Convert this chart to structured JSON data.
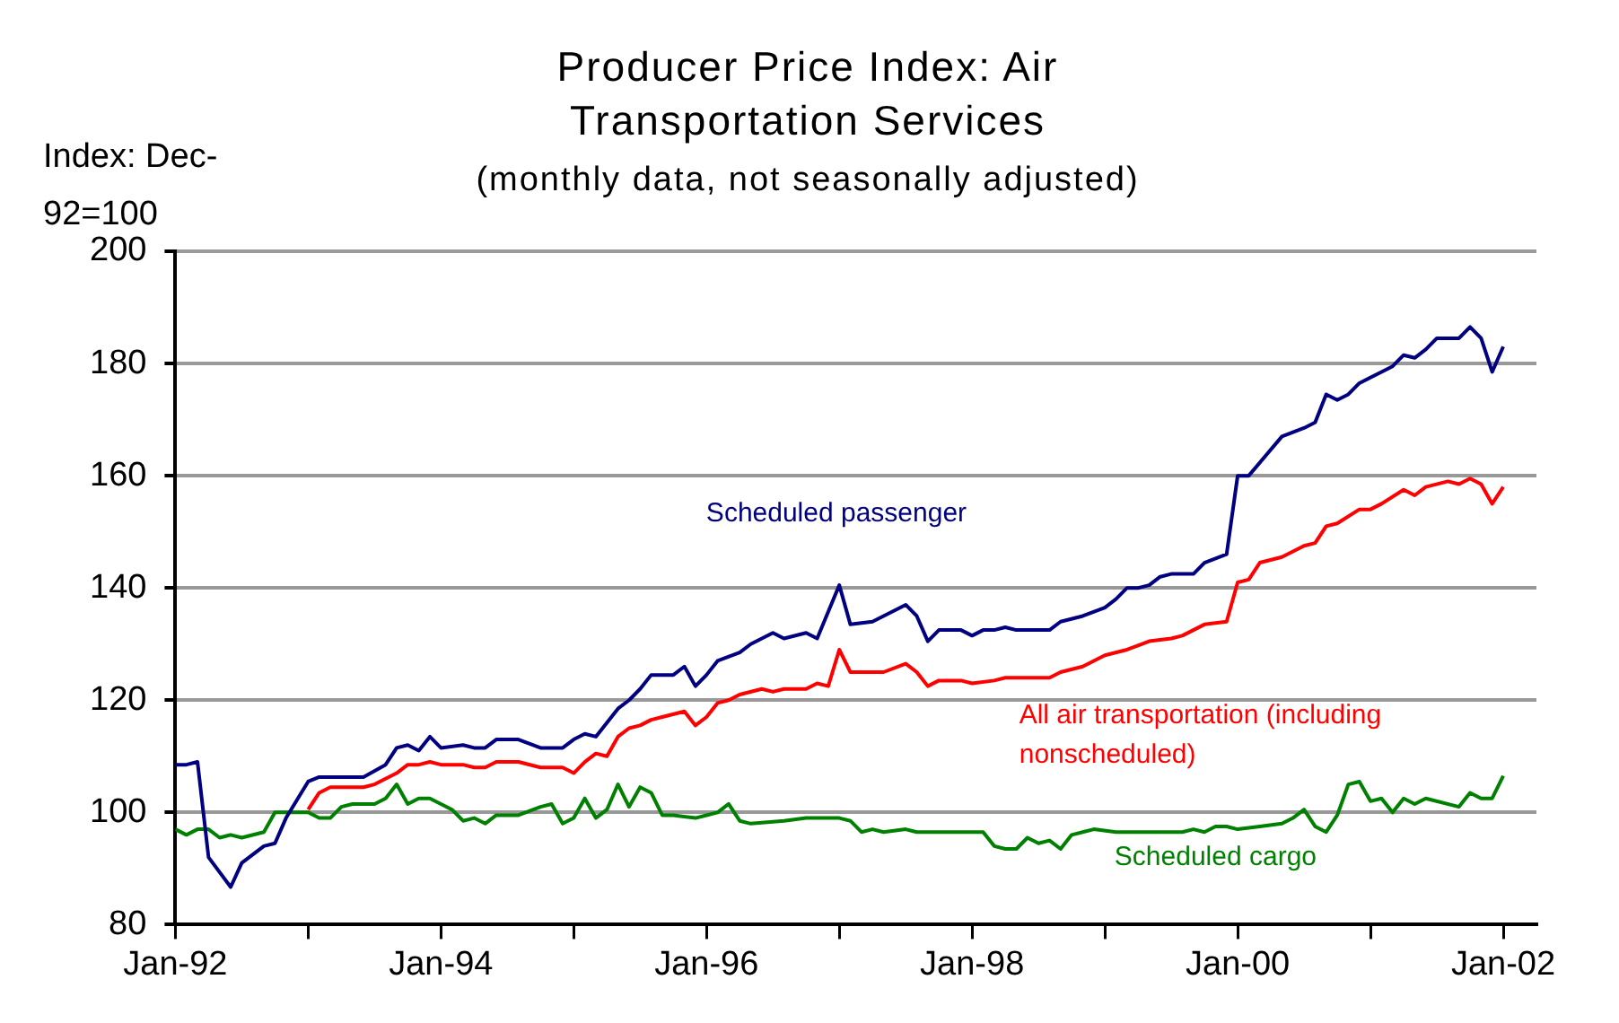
{
  "chart_data": {
    "type": "line",
    "title": "Producer Price Index: Air Transportation Services",
    "subtitle": "(monthly data, not seasonally adjusted)",
    "ylabel": "Index: Dec-92=100",
    "xlim": [
      "1992-01",
      "2002-04"
    ],
    "xticks": [
      {
        "value": "1992-01",
        "label": "Jan-92"
      },
      {
        "value": "1993-01",
        "label": null
      },
      {
        "value": "1994-01",
        "label": "Jan-94"
      },
      {
        "value": "1995-01",
        "label": null
      },
      {
        "value": "1996-01",
        "label": "Jan-96"
      },
      {
        "value": "1997-01",
        "label": null
      },
      {
        "value": "1998-01",
        "label": "Jan-98"
      },
      {
        "value": "1999-01",
        "label": null
      },
      {
        "value": "2000-01",
        "label": "Jan-00"
      },
      {
        "value": "2001-01",
        "label": null
      },
      {
        "value": "2002-01",
        "label": "Jan-02"
      }
    ],
    "ylim": [
      80,
      200
    ],
    "yticks": [
      80,
      100,
      120,
      140,
      160,
      180,
      200
    ],
    "grid": "y",
    "legend": false,
    "marker": "none",
    "line_style": "solid",
    "series": [
      {
        "name": "Scheduled passenger",
        "color": "#000080",
        "x": [
          "1992-01",
          "1992-02",
          "1992-03",
          "1992-04",
          "1992-06",
          "1992-07",
          "1992-09",
          "1992-10",
          "1992-11",
          "1993-01",
          "1993-02",
          "1993-06",
          "1993-08",
          "1993-09",
          "1993-10",
          "1993-11",
          "1993-12",
          "1994-01",
          "1994-03",
          "1994-04",
          "1994-05",
          "1994-06",
          "1994-08",
          "1994-10",
          "1994-12",
          "1995-01",
          "1995-02",
          "1995-03",
          "1995-05",
          "1995-06",
          "1995-07",
          "1995-08",
          "1995-10",
          "1995-11",
          "1995-12",
          "1996-01",
          "1996-02",
          "1996-04",
          "1996-05",
          "1996-07",
          "1996-08",
          "1996-10",
          "1996-11",
          "1997-01",
          "1997-02",
          "1997-04",
          "1997-07",
          "1997-08",
          "1997-09",
          "1997-10",
          "1997-12",
          "1998-01",
          "1998-02",
          "1998-03",
          "1998-04",
          "1998-05",
          "1998-08",
          "1998-09",
          "1998-11",
          "1999-01",
          "1999-02",
          "1999-03",
          "1999-04",
          "1999-05",
          "1999-06",
          "1999-07",
          "1999-09",
          "1999-10",
          "1999-12",
          "2000-01",
          "2000-02",
          "2000-05",
          "2000-07",
          "2000-08",
          "2000-09",
          "2000-10",
          "2000-11",
          "2000-12",
          "2001-02",
          "2001-03",
          "2001-04",
          "2001-05",
          "2001-06",
          "2001-07",
          "2001-09",
          "2001-10",
          "2001-11",
          "2001-12",
          "2002-01"
        ],
        "values": [
          108.5,
          108.5,
          109,
          92,
          86.7,
          91,
          94,
          94.5,
          99,
          105.5,
          106.3,
          106.3,
          108.5,
          111.5,
          112,
          111,
          113.5,
          111.5,
          112,
          111.5,
          111.5,
          113,
          113,
          111.5,
          111.5,
          113,
          114,
          113.5,
          118.5,
          120,
          122,
          124.5,
          124.5,
          126,
          122.5,
          124.5,
          127,
          128.5,
          130,
          132,
          131,
          132,
          131,
          140.5,
          133.5,
          134,
          137,
          135,
          130.5,
          132.5,
          132.5,
          131.5,
          132.5,
          132.5,
          133,
          132.5,
          132.5,
          134,
          135,
          136.5,
          138,
          140,
          140,
          140.5,
          142,
          142.5,
          142.5,
          144.5,
          146,
          160,
          160,
          167,
          168.5,
          169.5,
          174.5,
          173.5,
          174.5,
          176.5,
          178.5,
          179.5,
          181.5,
          181,
          182.5,
          184.5,
          184.5,
          186.5,
          184.5,
          178.5,
          183
        ]
      },
      {
        "name": "All air transportation (including nonscheduled)",
        "color": "#ff0000",
        "x": [
          "1993-01",
          "1993-02",
          "1993-03",
          "1993-06",
          "1993-07",
          "1993-08",
          "1993-09",
          "1993-10",
          "1993-11",
          "1993-12",
          "1994-01",
          "1994-03",
          "1994-04",
          "1994-05",
          "1994-06",
          "1994-08",
          "1994-10",
          "1994-12",
          "1995-01",
          "1995-02",
          "1995-03",
          "1995-04",
          "1995-05",
          "1995-06",
          "1995-07",
          "1995-08",
          "1995-09",
          "1995-11",
          "1995-12",
          "1996-01",
          "1996-02",
          "1996-03",
          "1996-04",
          "1996-06",
          "1996-07",
          "1996-08",
          "1996-10",
          "1996-11",
          "1996-12",
          "1997-01",
          "1997-02",
          "1997-05",
          "1997-07",
          "1997-08",
          "1997-09",
          "1997-10",
          "1997-12",
          "1998-01",
          "1998-03",
          "1998-04",
          "1998-08",
          "1998-09",
          "1998-11",
          "1999-01",
          "1999-03",
          "1999-05",
          "1999-07",
          "1999-08",
          "1999-09",
          "1999-10",
          "1999-12",
          "2000-01",
          "2000-02",
          "2000-03",
          "2000-05",
          "2000-07",
          "2000-08",
          "2000-09",
          "2000-10",
          "2000-12",
          "2001-01",
          "2001-02",
          "2001-04",
          "2001-05",
          "2001-06",
          "2001-08",
          "2001-09",
          "2001-10",
          "2001-11",
          "2001-12",
          "2002-01"
        ],
        "values": [
          100.5,
          103.5,
          104.5,
          104.5,
          105,
          106,
          107,
          108.5,
          108.5,
          109,
          108.5,
          108.5,
          108,
          108,
          109,
          109,
          108,
          108,
          107,
          109,
          110.5,
          110,
          113.5,
          115,
          115.5,
          116.5,
          117,
          118,
          115.5,
          117,
          119.5,
          120,
          121,
          122,
          121.5,
          122,
          122,
          123,
          122.5,
          129,
          125,
          125,
          126.5,
          125,
          122.5,
          123.5,
          123.5,
          123,
          123.5,
          124,
          124,
          125,
          126,
          128,
          129,
          130.5,
          131,
          131.5,
          132.5,
          133.5,
          134,
          141,
          141.5,
          144.5,
          145.5,
          147.5,
          148,
          151,
          151.5,
          154,
          154,
          155,
          157.5,
          156.5,
          158,
          159,
          158.5,
          159.5,
          158.5,
          155,
          158
        ]
      },
      {
        "name": "Scheduled cargo",
        "color": "#008000",
        "x": [
          "1992-01",
          "1992-02",
          "1992-03",
          "1992-04",
          "1992-05",
          "1992-06",
          "1992-07",
          "1992-09",
          "1992-10",
          "1993-01",
          "1993-02",
          "1993-03",
          "1993-04",
          "1993-05",
          "1993-07",
          "1993-08",
          "1993-09",
          "1993-10",
          "1993-11",
          "1993-12",
          "1994-01",
          "1994-02",
          "1994-03",
          "1994-04",
          "1994-05",
          "1994-06",
          "1994-08",
          "1994-10",
          "1994-11",
          "1994-12",
          "1995-01",
          "1995-02",
          "1995-03",
          "1995-04",
          "1995-05",
          "1995-06",
          "1995-07",
          "1995-08",
          "1995-09",
          "1995-10",
          "1995-12",
          "1996-01",
          "1996-02",
          "1996-03",
          "1996-04",
          "1996-05",
          "1996-08",
          "1996-10",
          "1997-01",
          "1997-02",
          "1997-03",
          "1997-04",
          "1997-05",
          "1997-07",
          "1997-08",
          "1998-02",
          "1998-03",
          "1998-04",
          "1998-05",
          "1998-06",
          "1998-07",
          "1998-08",
          "1998-09",
          "1998-10",
          "1998-11",
          "1998-12",
          "1999-02",
          "1999-04",
          "1999-08",
          "1999-09",
          "1999-10",
          "1999-11",
          "1999-12",
          "2000-01",
          "2000-03",
          "2000-05",
          "2000-06",
          "2000-07",
          "2000-08",
          "2000-09",
          "2000-10",
          "2000-11",
          "2000-12",
          "2001-01",
          "2001-02",
          "2001-03",
          "2001-04",
          "2001-05",
          "2001-06",
          "2001-09",
          "2001-10",
          "2001-11",
          "2001-12",
          "2002-01"
        ],
        "values": [
          97,
          96,
          97,
          97,
          95.5,
          96,
          95.5,
          96.5,
          100,
          100,
          99,
          99,
          101,
          101.5,
          101.5,
          102.5,
          105,
          101.5,
          102.5,
          102.5,
          101.5,
          100.5,
          98.5,
          99,
          98,
          99.5,
          99.5,
          101,
          101.5,
          98,
          99,
          102.5,
          99,
          100.5,
          105,
          101,
          104.5,
          103.5,
          99.5,
          99.5,
          99,
          99.5,
          100,
          101.5,
          98.5,
          98,
          98.5,
          99,
          99,
          98.5,
          96.5,
          97,
          96.5,
          97,
          96.5,
          96.5,
          94,
          93.5,
          93.5,
          95.5,
          94.5,
          95,
          93.5,
          96,
          96.5,
          97,
          96.5,
          96.5,
          96.5,
          97,
          96.5,
          97.5,
          97.5,
          97,
          97.5,
          98,
          99,
          100.5,
          97.5,
          96.5,
          99.5,
          105,
          105.5,
          102,
          102.5,
          100,
          102.5,
          101.5,
          102.5,
          101,
          103.5,
          102.5,
          102.5,
          106.5
        ]
      }
    ]
  }
}
